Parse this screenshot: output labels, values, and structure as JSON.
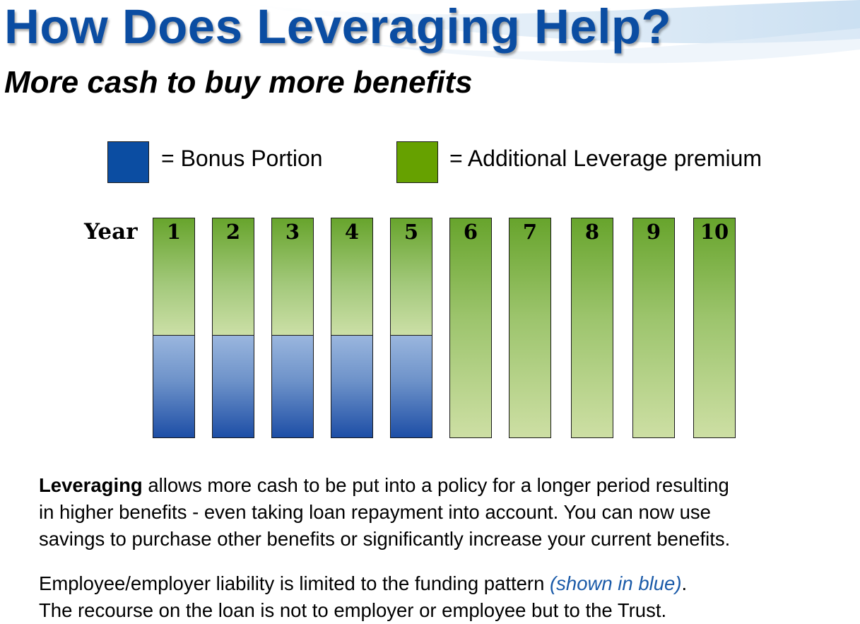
{
  "header": {
    "title": "How Does Leveraging Help?",
    "subtitle": "More cash to buy more benefits"
  },
  "legend": [
    {
      "label": "= Bonus Portion",
      "color": "#0b4da2"
    },
    {
      "label": "= Additional Leverage premium",
      "color": "#66a100"
    }
  ],
  "diagram": {
    "axis_label": "Year",
    "years": [
      {
        "label": "1",
        "bonus": true
      },
      {
        "label": "2",
        "bonus": true
      },
      {
        "label": "3",
        "bonus": true
      },
      {
        "label": "4",
        "bonus": true
      },
      {
        "label": "5",
        "bonus": true
      },
      {
        "label": "6",
        "bonus": false
      },
      {
        "label": "7",
        "bonus": false
      },
      {
        "label": "8",
        "bonus": false
      },
      {
        "label": "9",
        "bonus": false
      },
      {
        "label": "10",
        "bonus": false
      }
    ]
  },
  "body": {
    "para1_bold": "Leveraging",
    "para1_line1": " allows more cash to be put into a policy for a longer period resulting",
    "para1_line2": "in higher benefits - even taking loan repayment into account. You can now use",
    "para1_line3": "savings to purchase other benefits or significantly increase your current benefits.",
    "para2_line1": "Employee/employer liability is limited to the funding pattern ",
    "para2_note": "(shown in blue)",
    "para2_period": ".",
    "para2_line2": "The recourse on the loan is not to employer or employee but to the Trust."
  }
}
